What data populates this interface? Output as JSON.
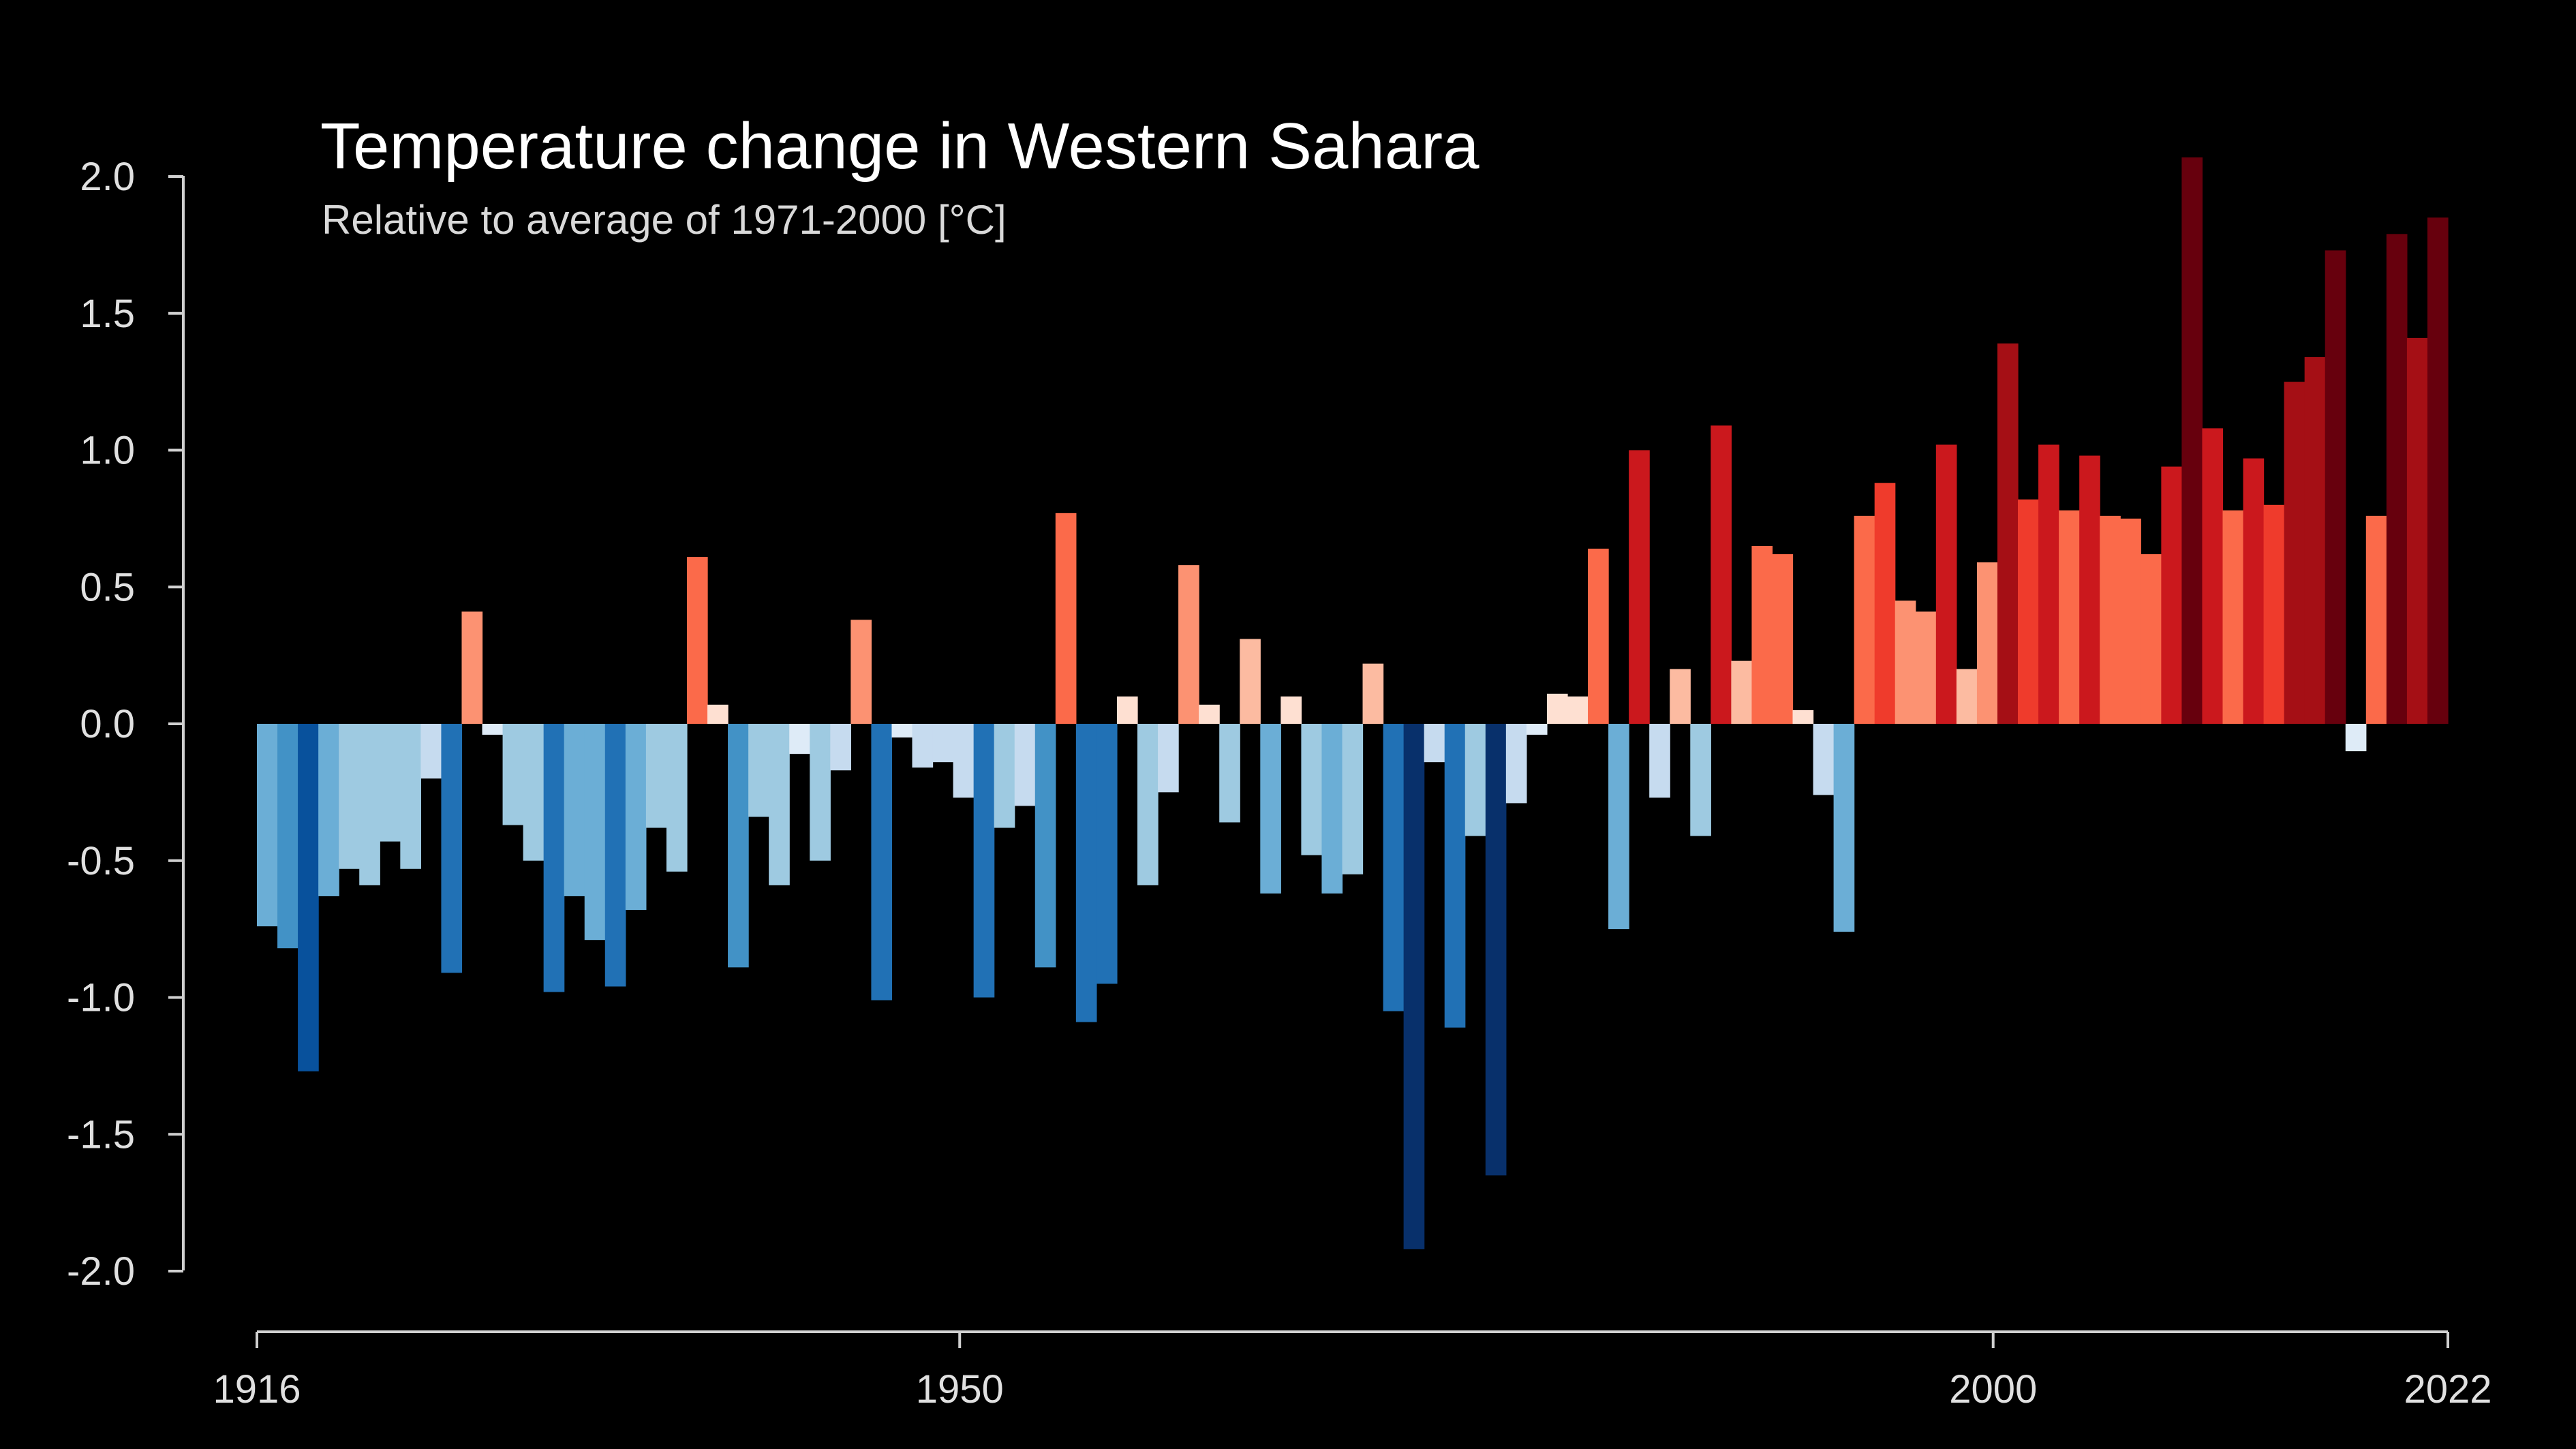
{
  "chart_data": {
    "type": "bar",
    "title": "Temperature change in Western Sahara",
    "subtitle": "Relative to average of 1971-2000  [°C]",
    "xlabel": "",
    "ylabel": "",
    "x_start": 1916,
    "x_end": 2022,
    "xticks": [
      1916,
      1950,
      2000,
      2022
    ],
    "yticks": [
      2.0,
      1.5,
      1.0,
      0.5,
      0.0,
      -0.5,
      -1.0,
      -1.5,
      -2.0
    ],
    "ytick_labels": [
      "2.0",
      "1.5",
      "1.0",
      "0.5",
      "0.0",
      "-0.5",
      "-1.0",
      "-1.5",
      "-2.0"
    ],
    "ylim": [
      -2.0,
      2.0
    ],
    "grid": false,
    "legend": "none",
    "color_scale": {
      "negative": [
        "#deebf7",
        "#c6dbef",
        "#9ecae1",
        "#6baed6",
        "#4292c6",
        "#2171b5",
        "#08519c",
        "#08306b"
      ],
      "positive": [
        "#fee0d2",
        "#fcbba1",
        "#fc9272",
        "#fb6a4a",
        "#ef3b2c",
        "#cb181d",
        "#a50f15",
        "#67000d"
      ]
    },
    "values": [
      -0.74,
      -0.82,
      -1.27,
      -0.63,
      -0.53,
      -0.59,
      -0.43,
      -0.53,
      -0.2,
      -0.91,
      0.41,
      -0.04,
      -0.37,
      -0.5,
      -0.98,
      -0.63,
      -0.79,
      -0.96,
      -0.68,
      -0.38,
      -0.54,
      0.61,
      0.07,
      -0.89,
      -0.34,
      -0.59,
      -0.11,
      -0.5,
      -0.17,
      0.38,
      -1.01,
      -0.05,
      -0.16,
      -0.14,
      -0.27,
      -1.0,
      -0.38,
      -0.3,
      -0.89,
      0.77,
      -1.09,
      -0.95,
      0.1,
      -0.59,
      -0.25,
      0.58,
      0.07,
      -0.36,
      0.31,
      -0.62,
      0.1,
      -0.48,
      -0.62,
      -0.55,
      0.22,
      -1.05,
      -1.92,
      -0.14,
      -1.11,
      -0.41,
      -1.65,
      -0.29,
      -0.04,
      0.11,
      0.1,
      0.64,
      -0.75,
      1.0,
      -0.27,
      0.2,
      -0.41,
      1.09,
      0.23,
      0.65,
      0.62,
      0.05,
      -0.26,
      -0.76,
      0.76,
      0.88,
      0.45,
      0.41,
      1.02,
      0.2,
      0.59,
      1.39,
      0.82,
      1.02,
      0.78,
      0.98,
      0.76,
      0.75,
      0.62,
      0.94,
      2.07,
      1.08,
      0.78,
      0.97,
      0.8,
      1.25,
      1.34,
      1.73,
      -0.1,
      0.76,
      1.79,
      1.41,
      1.85
    ]
  }
}
